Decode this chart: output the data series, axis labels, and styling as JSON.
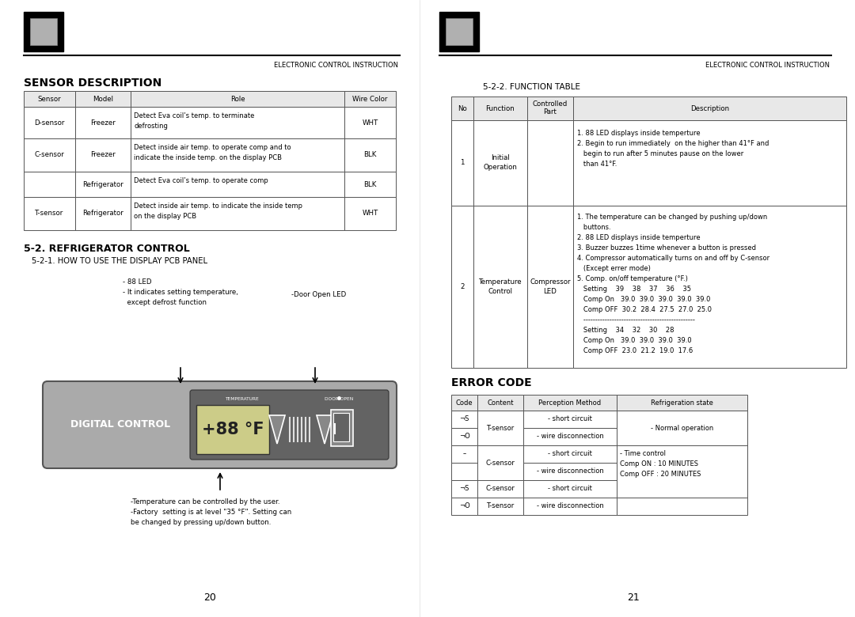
{
  "bg_color": "#ffffff",
  "header_text": "ELECTRONIC CONTROL INSTRUCTION",
  "page_left": "20",
  "page_right": "21",
  "sensor_title": "SENSOR DESCRIPTION",
  "sensor_headers": [
    "Sensor",
    "Model",
    "Role",
    "Wire Color"
  ],
  "sensor_rows": [
    [
      "D-sensor",
      "Freezer",
      "Detect Eva coil’s temp. to terminate\ndefrosting",
      "WHT"
    ],
    [
      "C-sensor",
      "Freezer",
      "Detect inside air temp. to operate comp and to\nindicate the inside temp. on the display PCB",
      "BLK"
    ],
    [
      "",
      "Refrigerator",
      "Detect Eva coil’s temp. to operate comp",
      "BLK"
    ],
    [
      "T-sensor",
      "Refrigerator",
      "Detect inside air temp. to indicate the inside temp\non the display PCB",
      "WHT"
    ]
  ],
  "ref_control_title": "5-2. REFRIGERATOR CONTROL",
  "pcb_subtitle": "5-2-1. HOW TO USE THE DISPLAY PCB PANEL",
  "annotation_88led": "- 88 LED\n- It indicates setting temperature,\n  except defrost function",
  "annotation_door": "-Door Open LED",
  "annotation_bottom": "-Temperature can be controlled by the user.\n-Factory  setting is at level \"35 °F\". Setting can\nbe changed by pressing up/down button.",
  "function_title": "5-2-2. FUNCTION TABLE",
  "function_headers": [
    "No",
    "Function",
    "Controlled\nPart",
    "Description"
  ],
  "function_row1": [
    "1",
    "Initial\nOperation",
    "",
    "1. 88 LED displays inside temperture\n2. Begin to run immediately  on the higher than 41°F and\n   begin to run after 5 minutes pause on the lower\n   than 41°F."
  ],
  "function_row2": [
    "2",
    "Temperature\nControl",
    "Compressor\nLED",
    "1. The temperature can be changed by pushing up/down\n   buttons.\n2. 88 LED displays inside temperture\n3. Buzzer buzzes 1time whenever a button is pressed\n4. Compressor automatically turns on and off by C-sensor\n   (Except errer mode)\n5. Comp. on/off temperature (°F.)\n   Setting    39    38    37    36    35\n   Comp On   39.0  39.0  39.0  39.0  39.0\n   Comp OFF  30.2  28.4  27.5  27.0  25.0\n   -----------------------------------------------\n   Setting    34    32    30    28\n   Comp On   39.0  39.0  39.0  39.0\n   Comp OFF  23.0  21.2  19.0  17.6"
  ],
  "error_title": "ERROR CODE",
  "error_headers": [
    "Code",
    "Content",
    "Perception Method",
    "Refrigeration state"
  ],
  "error_rows": [
    [
      "¬S",
      "",
      "- short circuit",
      ""
    ],
    [
      "¬O",
      "",
      "- wire disconnection",
      ""
    ],
    [
      "–",
      "",
      "- short circuit",
      ""
    ],
    [
      "",
      "",
      "- wire disconnection",
      ""
    ],
    [
      "¬S",
      "C-sensor",
      "- short circuit",
      ""
    ],
    [
      "¬O",
      "T-sensor",
      "- wire disconnection",
      ""
    ]
  ],
  "error_merged_content1": "T-sensor",
  "error_merged_state1": "- Normal operation",
  "error_merged_content2": "C-sensor",
  "error_merged_state2": "- Time control\nComp ON : 10 MINUTES\nComp OFF : 20 MINUTES"
}
